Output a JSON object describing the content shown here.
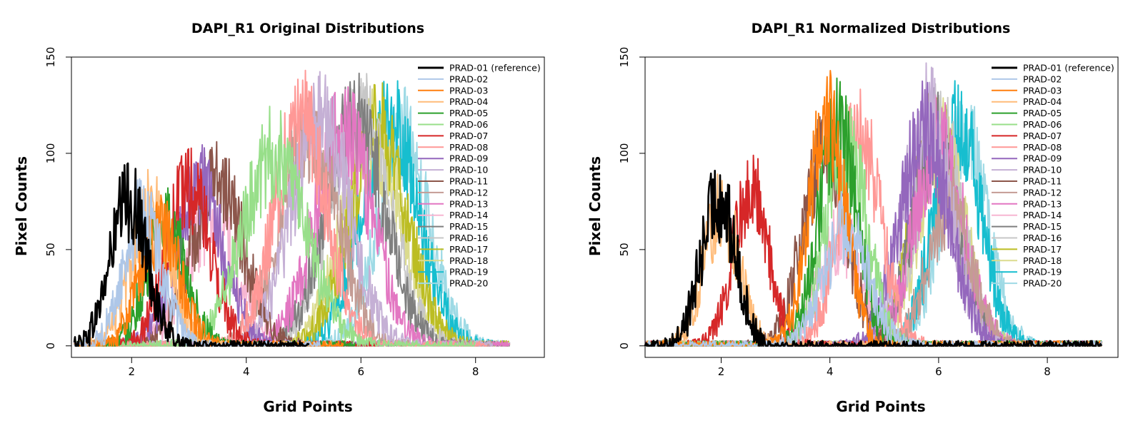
{
  "palette": [
    "#1f77b4",
    "#aec7e8",
    "#ff7f0e",
    "#ffbb78",
    "#2ca02c",
    "#98df8a",
    "#d62728",
    "#ff9896",
    "#9467bd",
    "#c5b0d5",
    "#8c564b",
    "#c49c94",
    "#e377c2",
    "#f7b6d2",
    "#7f7f7f",
    "#c7c7c7",
    "#bcbd22",
    "#dbdb8d",
    "#17becf",
    "#9edae5"
  ],
  "chart_data": [
    {
      "type": "line",
      "title": "DAPI_R1 Original Distributions",
      "xlabel": "Grid Points",
      "ylabel": "Pixel Counts",
      "xlim": [
        0.95,
        9.2
      ],
      "ylim": [
        -6,
        150
      ],
      "x_ticks": [
        2,
        4,
        6,
        8
      ],
      "y_ticks": [
        0,
        50,
        100,
        150
      ],
      "legend_position": "top-right",
      "series": [
        {
          "name": "PRAD-01 (reference)",
          "color": "#000000",
          "center": 1.95,
          "sd": 0.32,
          "peak": 76,
          "x_min": 1.0,
          "x_max": 5.1
        },
        {
          "name": "PRAD-02",
          "color": "#aec7e8",
          "center": 2.2,
          "sd": 0.33,
          "peak": 68,
          "x_min": 1.0,
          "x_max": 5.3
        },
        {
          "name": "PRAD-03",
          "color": "#ff7f0e",
          "center": 2.5,
          "sd": 0.35,
          "peak": 60,
          "x_min": 1.0,
          "x_max": 5.7
        },
        {
          "name": "PRAD-04",
          "color": "#ffbb78",
          "center": 2.35,
          "sd": 0.35,
          "peak": 72,
          "x_min": 1.0,
          "x_max": 5.5
        },
        {
          "name": "PRAD-05",
          "color": "#2ca02c",
          "center": 2.6,
          "sd": 0.35,
          "peak": 62,
          "x_min": 1.0,
          "x_max": 5.9
        },
        {
          "name": "PRAD-06",
          "color": "#98df8a",
          "center": 4.5,
          "sd": 0.55,
          "peak": 100,
          "x_min": 1.0,
          "x_max": 8.0
        },
        {
          "name": "PRAD-07",
          "color": "#d62728",
          "center": 3.0,
          "sd": 0.38,
          "peak": 82,
          "x_min": 1.0,
          "x_max": 6.3
        },
        {
          "name": "PRAD-08",
          "color": "#ff9896",
          "center": 4.95,
          "sd": 0.45,
          "peak": 118,
          "x_min": 1.0,
          "x_max": 8.2
        },
        {
          "name": "PRAD-09",
          "color": "#9467bd",
          "center": 3.2,
          "sd": 0.42,
          "peak": 82,
          "x_min": 1.0,
          "x_max": 6.5
        },
        {
          "name": "PRAD-10",
          "color": "#c5b0d5",
          "center": 5.3,
          "sd": 0.5,
          "peak": 120,
          "x_min": 1.0,
          "x_max": 8.3
        },
        {
          "name": "PRAD-11",
          "color": "#8c564b",
          "center": 3.5,
          "sd": 0.45,
          "peak": 85,
          "x_min": 1.0,
          "x_max": 6.8
        },
        {
          "name": "PRAD-12",
          "color": "#c49c94",
          "center": 5.1,
          "sd": 0.5,
          "peak": 108,
          "x_min": 1.0,
          "x_max": 8.3
        },
        {
          "name": "PRAD-13",
          "color": "#e377c2",
          "center": 5.7,
          "sd": 0.5,
          "peak": 112,
          "x_min": 1.0,
          "x_max": 8.6
        },
        {
          "name": "PRAD-14",
          "color": "#f7b6d2",
          "center": 3.4,
          "sd": 0.45,
          "peak": 65,
          "x_min": 1.0,
          "x_max": 6.8
        },
        {
          "name": "PRAD-15",
          "color": "#7f7f7f",
          "center": 5.9,
          "sd": 0.52,
          "peak": 115,
          "x_min": 1.0,
          "x_max": 8.6
        },
        {
          "name": "PRAD-16",
          "color": "#c7c7c7",
          "center": 6.0,
          "sd": 0.52,
          "peak": 118,
          "x_min": 1.0,
          "x_max": 8.6
        },
        {
          "name": "PRAD-17",
          "color": "#bcbd22",
          "center": 6.3,
          "sd": 0.5,
          "peak": 112,
          "x_min": 1.0,
          "x_max": 8.6
        },
        {
          "name": "PRAD-18",
          "color": "#dbdb8d",
          "center": 6.2,
          "sd": 0.5,
          "peak": 110,
          "x_min": 1.0,
          "x_max": 8.6
        },
        {
          "name": "PRAD-19",
          "color": "#17becf",
          "center": 6.5,
          "sd": 0.5,
          "peak": 116,
          "x_min": 1.0,
          "x_max": 8.6
        },
        {
          "name": "PRAD-20",
          "color": "#9edae5",
          "center": 6.75,
          "sd": 0.45,
          "peak": 108,
          "x_min": 1.0,
          "x_max": 8.6
        }
      ]
    },
    {
      "type": "line",
      "title": "DAPI_R1 Normalized Distributions",
      "xlabel": "Grid Points",
      "ylabel": "Pixel Counts",
      "xlim": [
        0.6,
        9.3
      ],
      "ylim": [
        -6,
        150
      ],
      "x_ticks": [
        2,
        4,
        6,
        8
      ],
      "y_ticks": [
        0,
        50,
        100,
        150
      ],
      "legend_position": "top-right",
      "series": [
        {
          "name": "PRAD-01 (reference)",
          "color": "#000000",
          "center": 1.95,
          "sd": 0.32,
          "peak": 76,
          "x_min": 0.6,
          "x_max": 9.0
        },
        {
          "name": "PRAD-02",
          "color": "#aec7e8",
          "center": 4.3,
          "sd": 0.4,
          "peak": 62,
          "x_min": 0.6,
          "x_max": 9.0
        },
        {
          "name": "PRAD-03",
          "color": "#ff7f0e",
          "center": 3.95,
          "sd": 0.33,
          "peak": 118,
          "x_min": 0.6,
          "x_max": 9.0
        },
        {
          "name": "PRAD-04",
          "color": "#ffbb78",
          "center": 2.0,
          "sd": 0.33,
          "peak": 70,
          "x_min": 0.6,
          "x_max": 9.0
        },
        {
          "name": "PRAD-05",
          "color": "#2ca02c",
          "center": 4.15,
          "sd": 0.35,
          "peak": 115,
          "x_min": 0.6,
          "x_max": 9.0
        },
        {
          "name": "PRAD-06",
          "color": "#98df8a",
          "center": 4.3,
          "sd": 0.38,
          "peak": 105,
          "x_min": 0.6,
          "x_max": 9.0
        },
        {
          "name": "PRAD-07",
          "color": "#d62728",
          "center": 2.55,
          "sd": 0.32,
          "peak": 82,
          "x_min": 0.6,
          "x_max": 9.0
        },
        {
          "name": "PRAD-08",
          "color": "#ff9896",
          "center": 4.55,
          "sd": 0.38,
          "peak": 112,
          "x_min": 0.6,
          "x_max": 9.0
        },
        {
          "name": "PRAD-09",
          "color": "#9467bd",
          "center": 5.75,
          "sd": 0.45,
          "peak": 112,
          "x_min": 0.6,
          "x_max": 9.0
        },
        {
          "name": "PRAD-10",
          "color": "#c5b0d5",
          "center": 5.8,
          "sd": 0.42,
          "peak": 122,
          "x_min": 0.6,
          "x_max": 9.0
        },
        {
          "name": "PRAD-11",
          "color": "#8c564b",
          "center": 3.9,
          "sd": 0.4,
          "peak": 102,
          "x_min": 0.6,
          "x_max": 9.0
        },
        {
          "name": "PRAD-12",
          "color": "#c49c94",
          "center": 6.2,
          "sd": 0.4,
          "peak": 72,
          "x_min": 0.6,
          "x_max": 9.0
        },
        {
          "name": "PRAD-13",
          "color": "#e377c2",
          "center": 6.0,
          "sd": 0.45,
          "peak": 105,
          "x_min": 0.6,
          "x_max": 9.0
        },
        {
          "name": "PRAD-14",
          "color": "#f7b6d2",
          "center": 4.2,
          "sd": 0.4,
          "peak": 55,
          "x_min": 0.6,
          "x_max": 9.0
        },
        {
          "name": "PRAD-15",
          "color": "#7f7f7f",
          "center": 5.95,
          "sd": 0.42,
          "peak": 108,
          "x_min": 0.6,
          "x_max": 9.0
        },
        {
          "name": "PRAD-16",
          "color": "#c7c7c7",
          "center": 6.0,
          "sd": 0.42,
          "peak": 112,
          "x_min": 0.6,
          "x_max": 9.0
        },
        {
          "name": "PRAD-17",
          "color": "#bcbd22",
          "center": 5.95,
          "sd": 0.42,
          "peak": 110,
          "x_min": 0.6,
          "x_max": 9.0
        },
        {
          "name": "PRAD-18",
          "color": "#dbdb8d",
          "center": 6.05,
          "sd": 0.42,
          "peak": 105,
          "x_min": 0.6,
          "x_max": 9.0
        },
        {
          "name": "PRAD-19",
          "color": "#17becf",
          "center": 6.35,
          "sd": 0.42,
          "peak": 118,
          "x_min": 0.6,
          "x_max": 9.0
        },
        {
          "name": "PRAD-20",
          "color": "#9edae5",
          "center": 6.45,
          "sd": 0.42,
          "peak": 112,
          "x_min": 0.6,
          "x_max": 9.0
        }
      ]
    }
  ]
}
